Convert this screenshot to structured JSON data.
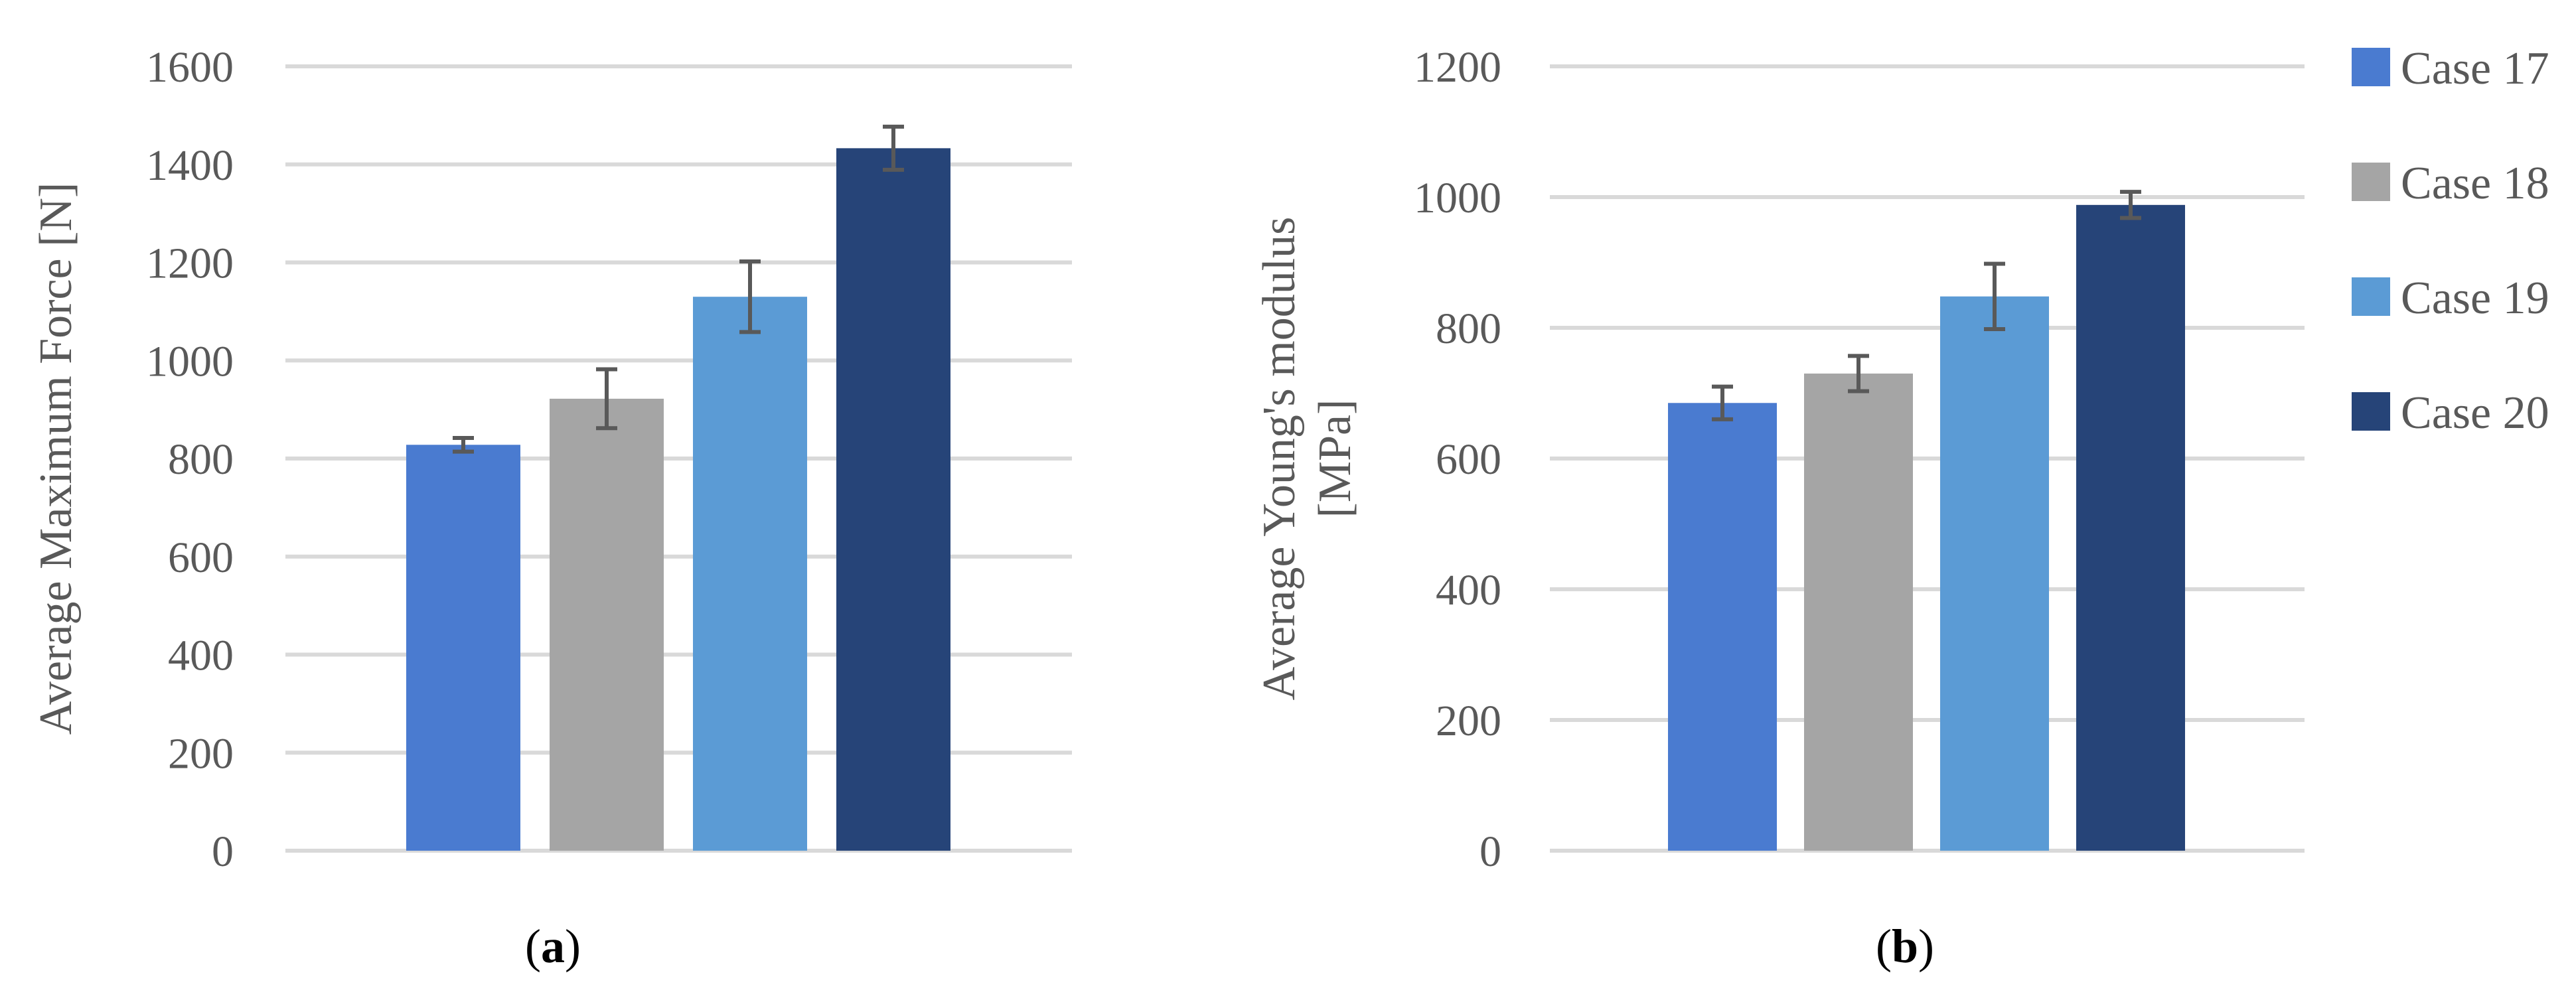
{
  "chart_data": [
    {
      "type": "bar",
      "panel_label": "a",
      "categories": [
        "Case 17",
        "Case 18",
        "Case 19",
        "Case 20"
      ],
      "series": [
        {
          "values": [
            828,
            922,
            1130,
            1433
          ],
          "error": [
            14,
            60,
            72,
            44
          ]
        }
      ],
      "colors": [
        "#4A7BD0",
        "#A5A5A5",
        "#5B9BD5",
        "#264478"
      ],
      "title": "",
      "xlabel": "",
      "ylabel": "Average Maximum Force [N]",
      "ylim": [
        0,
        1600
      ],
      "yticks": [
        "0",
        "200",
        "400",
        "600",
        "800",
        "1000",
        "1200",
        "1400",
        "1600"
      ],
      "grid": true,
      "legend": "none"
    },
    {
      "type": "bar",
      "panel_label": "b",
      "categories": [
        "Case 17",
        "Case 18",
        "Case 19",
        "Case 20"
      ],
      "series": [
        {
          "values": [
            685,
            730,
            848,
            988
          ],
          "error": [
            25,
            27,
            50,
            20
          ]
        }
      ],
      "colors": [
        "#4A7BD0",
        "#A5A5A5",
        "#5B9BD5",
        "#264478"
      ],
      "title": "",
      "xlabel": "",
      "ylabel": [
        "Average Young's modulus",
        "[MPa]"
      ],
      "ylim": [
        0,
        1200
      ],
      "yticks": [
        "0",
        "200",
        "400",
        "600",
        "800",
        "1000",
        "1200"
      ],
      "grid": true,
      "legend": "right"
    }
  ],
  "legend": {
    "entries": [
      {
        "label": "Case 17",
        "color": "#4A7BD0"
      },
      {
        "label": "Case 18",
        "color": "#A5A5A5"
      },
      {
        "label": "Case 19",
        "color": "#5B9BD5"
      },
      {
        "label": "Case 20",
        "color": "#264478"
      }
    ]
  }
}
